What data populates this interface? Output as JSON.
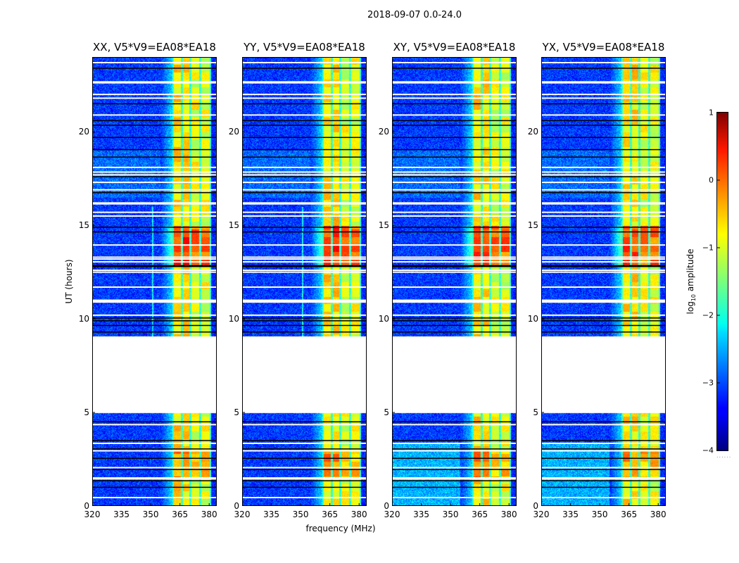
{
  "figure_title": "2018-09-07 0.0-24.0",
  "chart_data": {
    "type": "heatmap",
    "title": "2018-09-07 0.0-24.0",
    "xlabel": "frequency (MHz)",
    "ylabel": "UT (hours)",
    "xlim": [
      320,
      384
    ],
    "ylim": [
      0,
      24
    ],
    "xticks": [
      320,
      335,
      350,
      365,
      380
    ],
    "yticks": [
      0,
      5,
      10,
      15,
      20
    ],
    "panels": [
      {
        "id": "xx",
        "title": "XX, V5*V9=EA08*EA18",
        "offdiag": false
      },
      {
        "id": "yy",
        "title": "YY, V5*V9=EA08*EA18",
        "offdiag": false
      },
      {
        "id": "xy",
        "title": "XY, V5*V9=EA08*EA18",
        "offdiag": true
      },
      {
        "id": "yx",
        "title": "YX, V5*V9=EA08*EA18",
        "offdiag": true
      }
    ],
    "colorbar": {
      "label_main": "log",
      "label_sub": "10",
      "label_rest": " amplitude",
      "range": [
        -4,
        1
      ],
      "ticks": [
        "1",
        "0",
        "−1",
        "−2",
        "−3",
        "−4"
      ],
      "tick_values": [
        1,
        0,
        -1,
        -2,
        -3,
        -4
      ],
      "colormap": "jet"
    },
    "frequency_regions_log_amplitude": [
      {
        "from": 320,
        "to": 355,
        "level": -3.1
      },
      {
        "from": 355,
        "to": 361,
        "level": -2.4
      },
      {
        "from": 361,
        "to": 381,
        "level": -0.6
      },
      {
        "from": 381,
        "to": 384,
        "level": -3.2
      }
    ],
    "channel_gaps_mhz": [
      365.8,
      370.2,
      375.2
    ],
    "bright_intervals_hours": [
      {
        "from": 12.9,
        "to": 15.0,
        "level": 0.1
      },
      {
        "from": 1.5,
        "to": 3.0,
        "level": -0.3
      }
    ],
    "flagged_intervals_hours": [
      [
        5.0,
        9.1
      ]
    ],
    "flagged_rows_hours": [
      23.7,
      22.67,
      22.62,
      22.0,
      21.8,
      20.9,
      18.1,
      17.85,
      17.7,
      17.3,
      16.9,
      16.2,
      16.15,
      15.7,
      15.5,
      13.95,
      13.3,
      13.2,
      13.05,
      12.6,
      12.5,
      11.7,
      11.0,
      10.95,
      10.9,
      10.2,
      4.35,
      3.35,
      2.95,
      2.05,
      1.5,
      1.45,
      0.45
    ],
    "black_rows_hours": [
      23.4,
      21.5,
      20.6,
      20.35,
      19.7,
      19.05,
      18.65,
      17.6,
      16.75,
      14.9,
      14.65,
      12.85,
      12.8,
      10.05,
      9.9,
      9.65,
      9.3,
      4.5,
      3.5,
      3.05,
      2.55,
      1.95,
      1.35,
      1.0
    ]
  }
}
